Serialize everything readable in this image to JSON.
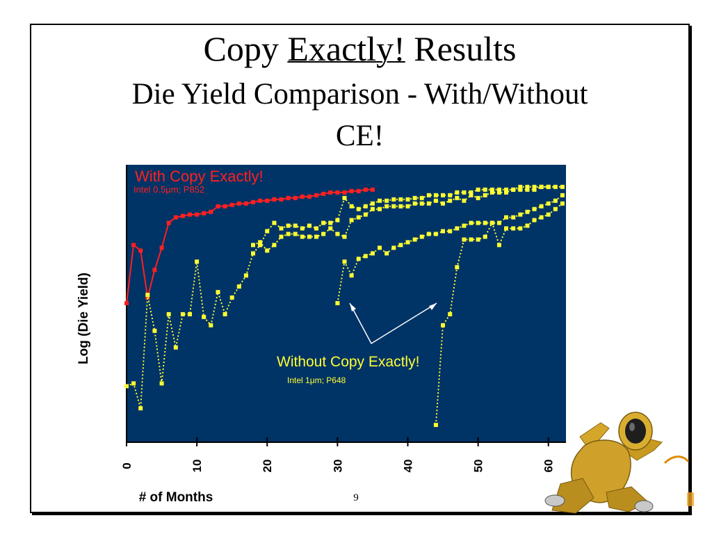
{
  "slide": {
    "title_prefix": "Copy ",
    "title_emphasis": "Exactly!",
    "title_suffix": " Results",
    "subtitle_line1": "Die Yield Comparison - With/Without",
    "subtitle_line2": "CE!",
    "page_number": "9"
  },
  "colors": {
    "plot_background": "#003366",
    "with_ce": "#ff2020",
    "without_ce": "#ffff33",
    "arrow": "#ffffff"
  },
  "chart_data": {
    "type": "line",
    "xlabel": "# of Months",
    "ylabel": "Log (Die Yield)",
    "xlim": [
      0,
      62.5
    ],
    "ylim": [
      0,
      100
    ],
    "x_ticks": [
      0,
      10,
      20,
      30,
      40,
      50,
      60
    ],
    "x_tick_labels": [
      "0",
      "10",
      "20",
      "30",
      "40",
      "50",
      "60"
    ],
    "y_ticks_labeled": false,
    "grid": false,
    "annotations": {
      "with_title": "With  Copy Exactly!",
      "with_sub": "Intel 0.5μm;  P852",
      "without_title": "Without Copy Exactly!",
      "without_sub": "Intel 1μm; P648"
    },
    "series": [
      {
        "id": "with_ce",
        "color": "#ff2020",
        "style": "solid",
        "points": [
          [
            0,
            50
          ],
          [
            1,
            71
          ],
          [
            2,
            69
          ],
          [
            3,
            52
          ],
          [
            4,
            62
          ],
          [
            5,
            70
          ],
          [
            6,
            79
          ],
          [
            7,
            81
          ],
          [
            8,
            81.5
          ],
          [
            9,
            82
          ],
          [
            10,
            82
          ],
          [
            11,
            82.5
          ],
          [
            12,
            83
          ],
          [
            13,
            85
          ],
          [
            14,
            85
          ],
          [
            15,
            85.5
          ],
          [
            16,
            86
          ],
          [
            17,
            86
          ],
          [
            18,
            86.5
          ],
          [
            19,
            87
          ],
          [
            20,
            87
          ],
          [
            21,
            87.5
          ],
          [
            22,
            87.5
          ],
          [
            23,
            88
          ],
          [
            24,
            88
          ],
          [
            25,
            88.5
          ],
          [
            26,
            88.5
          ],
          [
            27,
            89
          ],
          [
            28,
            89.5
          ],
          [
            29,
            90
          ],
          [
            30,
            90
          ],
          [
            31,
            90
          ],
          [
            32,
            90.5
          ],
          [
            33,
            90.5
          ],
          [
            34,
            91
          ],
          [
            35,
            91
          ]
        ]
      },
      {
        "id": "without_a",
        "color": "#ffff33",
        "style": "dotted",
        "points": [
          [
            0,
            20
          ],
          [
            1,
            21
          ],
          [
            2,
            12
          ],
          [
            3,
            53
          ],
          [
            4,
            40
          ],
          [
            5,
            21
          ],
          [
            6,
            46
          ],
          [
            7,
            34
          ],
          [
            8,
            46
          ],
          [
            9,
            46
          ],
          [
            10,
            65
          ],
          [
            11,
            45
          ],
          [
            12,
            42
          ],
          [
            13,
            54
          ],
          [
            14,
            46
          ],
          [
            15,
            52
          ],
          [
            16,
            56
          ],
          [
            17,
            60
          ],
          [
            18,
            68
          ],
          [
            19,
            71
          ],
          [
            20,
            76
          ],
          [
            21,
            79
          ],
          [
            22,
            77
          ],
          [
            23,
            78
          ],
          [
            24,
            78
          ],
          [
            25,
            77
          ],
          [
            26,
            78
          ],
          [
            27,
            77
          ],
          [
            28,
            79
          ],
          [
            29,
            79
          ],
          [
            30,
            80
          ],
          [
            31,
            88
          ],
          [
            32,
            85
          ],
          [
            33,
            84
          ],
          [
            34,
            85
          ],
          [
            35,
            86
          ],
          [
            36,
            87
          ],
          [
            37,
            87
          ],
          [
            38,
            87.5
          ],
          [
            39,
            87.5
          ],
          [
            40,
            87.5
          ],
          [
            41,
            88
          ],
          [
            42,
            88
          ],
          [
            43,
            89
          ],
          [
            44,
            89
          ],
          [
            45,
            89
          ],
          [
            46,
            89
          ],
          [
            47,
            90
          ],
          [
            48,
            90
          ],
          [
            49,
            90
          ],
          [
            50,
            91
          ],
          [
            51,
            91
          ],
          [
            52,
            91
          ],
          [
            53,
            91
          ],
          [
            54,
            91
          ],
          [
            55,
            91
          ],
          [
            56,
            92
          ],
          [
            57,
            92
          ],
          [
            58,
            92
          ],
          [
            59,
            92
          ],
          [
            60,
            92
          ]
        ]
      },
      {
        "id": "without_b",
        "color": "#ffff33",
        "style": "dotted",
        "points": [
          [
            18,
            71
          ],
          [
            19,
            72
          ],
          [
            20,
            69
          ],
          [
            21,
            71
          ],
          [
            22,
            74
          ],
          [
            23,
            75
          ],
          [
            24,
            75
          ],
          [
            25,
            74
          ],
          [
            26,
            74
          ],
          [
            27,
            74
          ],
          [
            28,
            75
          ],
          [
            29,
            77
          ],
          [
            30,
            75
          ],
          [
            31,
            74
          ],
          [
            32,
            80
          ],
          [
            33,
            81
          ],
          [
            34,
            82
          ],
          [
            35,
            84
          ],
          [
            36,
            84
          ],
          [
            37,
            85
          ],
          [
            38,
            85
          ],
          [
            39,
            85
          ],
          [
            40,
            85
          ],
          [
            41,
            86
          ],
          [
            42,
            86
          ],
          [
            43,
            86
          ],
          [
            44,
            87
          ],
          [
            45,
            86
          ],
          [
            46,
            87
          ],
          [
            47,
            88
          ],
          [
            48,
            87
          ],
          [
            49,
            89
          ],
          [
            50,
            88
          ],
          [
            51,
            89
          ],
          [
            52,
            90
          ],
          [
            53,
            90
          ],
          [
            54,
            90
          ],
          [
            55,
            91
          ],
          [
            56,
            91
          ],
          [
            57,
            91
          ],
          [
            58,
            91
          ],
          [
            59,
            92
          ],
          [
            60,
            92
          ],
          [
            61,
            92
          ],
          [
            62,
            92
          ]
        ]
      },
      {
        "id": "without_c",
        "color": "#ffff33",
        "style": "dotted",
        "points": [
          [
            30,
            50
          ],
          [
            31,
            65
          ],
          [
            32,
            60
          ],
          [
            33,
            66
          ],
          [
            34,
            67
          ],
          [
            35,
            68
          ],
          [
            36,
            70
          ],
          [
            37,
            68
          ],
          [
            38,
            70
          ],
          [
            39,
            71
          ],
          [
            40,
            72
          ],
          [
            41,
            73
          ],
          [
            42,
            74
          ],
          [
            43,
            75
          ],
          [
            44,
            75
          ],
          [
            45,
            76
          ],
          [
            46,
            76
          ],
          [
            47,
            77
          ],
          [
            48,
            78
          ],
          [
            49,
            79
          ],
          [
            50,
            79
          ],
          [
            51,
            79
          ],
          [
            52,
            79
          ],
          [
            53,
            79
          ],
          [
            54,
            81
          ],
          [
            55,
            81
          ],
          [
            56,
            82
          ],
          [
            57,
            83
          ],
          [
            58,
            84
          ],
          [
            59,
            85
          ],
          [
            60,
            86
          ],
          [
            61,
            87
          ],
          [
            62,
            89
          ]
        ]
      },
      {
        "id": "without_d",
        "color": "#ffff33",
        "style": "dotted",
        "points": [
          [
            44,
            6
          ],
          [
            45,
            42
          ],
          [
            46,
            46
          ],
          [
            47,
            63
          ],
          [
            48,
            73
          ],
          [
            49,
            73
          ],
          [
            50,
            73
          ],
          [
            51,
            74
          ],
          [
            52,
            79
          ],
          [
            53,
            71
          ],
          [
            54,
            77
          ],
          [
            55,
            77
          ],
          [
            56,
            77
          ],
          [
            57,
            78
          ],
          [
            58,
            80
          ],
          [
            59,
            81
          ],
          [
            60,
            82
          ],
          [
            61,
            84
          ],
          [
            62,
            86
          ]
        ]
      }
    ]
  }
}
